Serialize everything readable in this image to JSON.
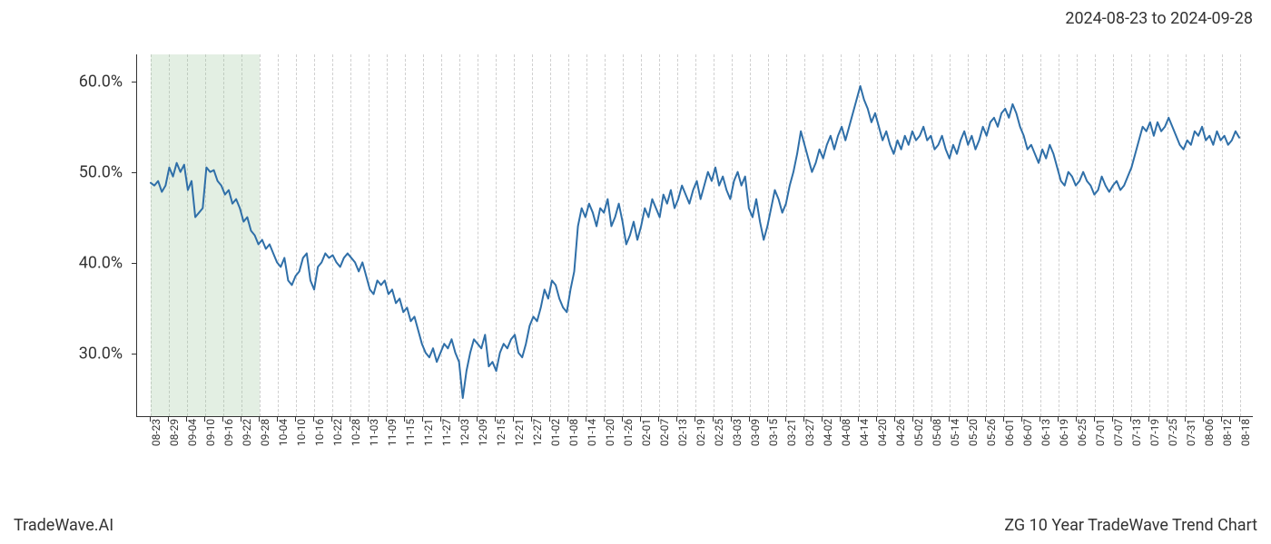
{
  "date_range_label": "2024-08-23 to 2024-09-28",
  "footer_left": "TradeWave.AI",
  "footer_right": "ZG 10 Year TradeWave Trend Chart",
  "chart": {
    "type": "line",
    "background_color": "#ffffff",
    "line_color": "#2f6fa8",
    "line_width": 2,
    "grid_color": "#d0d0d0",
    "axis_color": "#333333",
    "text_color": "#333333",
    "highlight_band_color": "rgba(144,190,144,0.25)",
    "highlight_start_index": 0,
    "highlight_end_index": 6,
    "ylim": [
      23,
      63
    ],
    "yticks": [
      30,
      40,
      50,
      60
    ],
    "ytick_labels": [
      "30.0%",
      "40.0%",
      "50.0%",
      "60.0%"
    ],
    "y_label_fontsize": 18,
    "x_label_fontsize": 12,
    "x_labels": [
      "08-23",
      "08-29",
      "09-04",
      "09-10",
      "09-16",
      "09-22",
      "09-28",
      "10-04",
      "10-10",
      "10-16",
      "10-22",
      "10-28",
      "11-03",
      "11-09",
      "11-15",
      "11-21",
      "11-27",
      "12-03",
      "12-09",
      "12-15",
      "12-21",
      "12-27",
      "01-02",
      "01-08",
      "01-14",
      "01-20",
      "01-26",
      "02-01",
      "02-07",
      "02-13",
      "02-19",
      "02-25",
      "03-03",
      "03-09",
      "03-15",
      "03-21",
      "03-27",
      "04-02",
      "04-08",
      "04-14",
      "04-20",
      "04-26",
      "05-02",
      "05-08",
      "05-14",
      "05-20",
      "05-26",
      "06-01",
      "06-07",
      "06-13",
      "06-19",
      "06-25",
      "07-01",
      "07-07",
      "07-13",
      "07-19",
      "07-25",
      "07-31",
      "08-06",
      "08-12",
      "08-18"
    ],
    "values": [
      48.8,
      48.5,
      49.0,
      47.8,
      48.5,
      50.5,
      49.5,
      51.0,
      50.0,
      50.8,
      48.0,
      49.0,
      45.0,
      45.5,
      46.0,
      50.5,
      50.0,
      50.2,
      49.0,
      48.5,
      47.5,
      48.0,
      46.5,
      47.0,
      46.0,
      44.5,
      45.0,
      43.5,
      43.0,
      42.0,
      42.5,
      41.5,
      42.0,
      41.0,
      40.0,
      39.5,
      40.5,
      38.0,
      37.5,
      38.5,
      39.0,
      40.5,
      41.0,
      38.0,
      37.0,
      39.5,
      40.0,
      41.0,
      40.5,
      40.8,
      40.0,
      39.5,
      40.5,
      41.0,
      40.5,
      40.0,
      39.0,
      40.0,
      38.5,
      37.0,
      36.5,
      38.0,
      37.5,
      38.0,
      36.5,
      37.0,
      35.5,
      36.0,
      34.5,
      35.0,
      33.5,
      34.0,
      32.5,
      31.0,
      30.0,
      29.5,
      30.5,
      29.0,
      30.0,
      31.0,
      30.5,
      31.5,
      30.0,
      29.0,
      25.0,
      28.0,
      30.0,
      31.5,
      31.0,
      30.5,
      32.0,
      28.5,
      29.0,
      28.0,
      30.0,
      31.0,
      30.5,
      31.5,
      32.0,
      30.0,
      29.5,
      31.0,
      33.0,
      34.0,
      33.5,
      35.0,
      37.0,
      36.0,
      38.0,
      37.5,
      36.0,
      35.0,
      34.5,
      37.0,
      39.0,
      44.0,
      46.0,
      45.0,
      46.5,
      45.5,
      44.0,
      46.0,
      45.5,
      47.0,
      44.0,
      45.0,
      46.5,
      44.5,
      42.0,
      43.0,
      44.5,
      42.5,
      44.0,
      46.0,
      45.0,
      47.0,
      46.0,
      45.0,
      47.5,
      46.5,
      48.0,
      46.0,
      47.0,
      48.5,
      47.5,
      46.5,
      48.0,
      49.0,
      47.0,
      48.5,
      50.0,
      49.0,
      50.5,
      48.5,
      49.5,
      48.0,
      47.0,
      49.0,
      50.0,
      48.5,
      49.5,
      46.0,
      45.0,
      47.0,
      44.5,
      42.5,
      44.0,
      46.0,
      48.0,
      47.0,
      45.5,
      46.5,
      48.5,
      50.0,
      52.0,
      54.5,
      53.0,
      51.5,
      50.0,
      51.0,
      52.5,
      51.5,
      53.0,
      54.0,
      52.5,
      54.0,
      55.0,
      53.5,
      55.0,
      56.5,
      58.0,
      59.5,
      58.0,
      57.0,
      55.5,
      56.5,
      55.0,
      53.5,
      54.5,
      53.0,
      52.0,
      53.5,
      52.5,
      54.0,
      53.0,
      54.5,
      53.5,
      54.0,
      55.0,
      53.5,
      54.0,
      52.5,
      53.0,
      54.0,
      52.5,
      51.5,
      53.0,
      52.0,
      53.5,
      54.5,
      53.0,
      54.0,
      52.5,
      53.5,
      55.0,
      54.0,
      55.5,
      56.0,
      55.0,
      56.5,
      57.0,
      56.0,
      57.5,
      56.5,
      55.0,
      54.0,
      52.5,
      53.0,
      52.0,
      51.0,
      52.5,
      51.5,
      53.0,
      52.0,
      50.5,
      49.0,
      48.5,
      50.0,
      49.5,
      48.5,
      49.0,
      50.0,
      49.0,
      48.5,
      47.5,
      48.0,
      49.5,
      48.5,
      47.8,
      48.5,
      49.0,
      48.0,
      48.5,
      49.5,
      50.5,
      52.0,
      53.5,
      55.0,
      54.5,
      55.5,
      54.0,
      55.5,
      54.5,
      55.0,
      56.0,
      55.0,
      54.0,
      53.0,
      52.5,
      53.5,
      53.0,
      54.5,
      54.0,
      55.0,
      53.5,
      54.0,
      53.0,
      54.5,
      53.5,
      54.0,
      53.0,
      53.5,
      54.5,
      53.8
    ]
  }
}
